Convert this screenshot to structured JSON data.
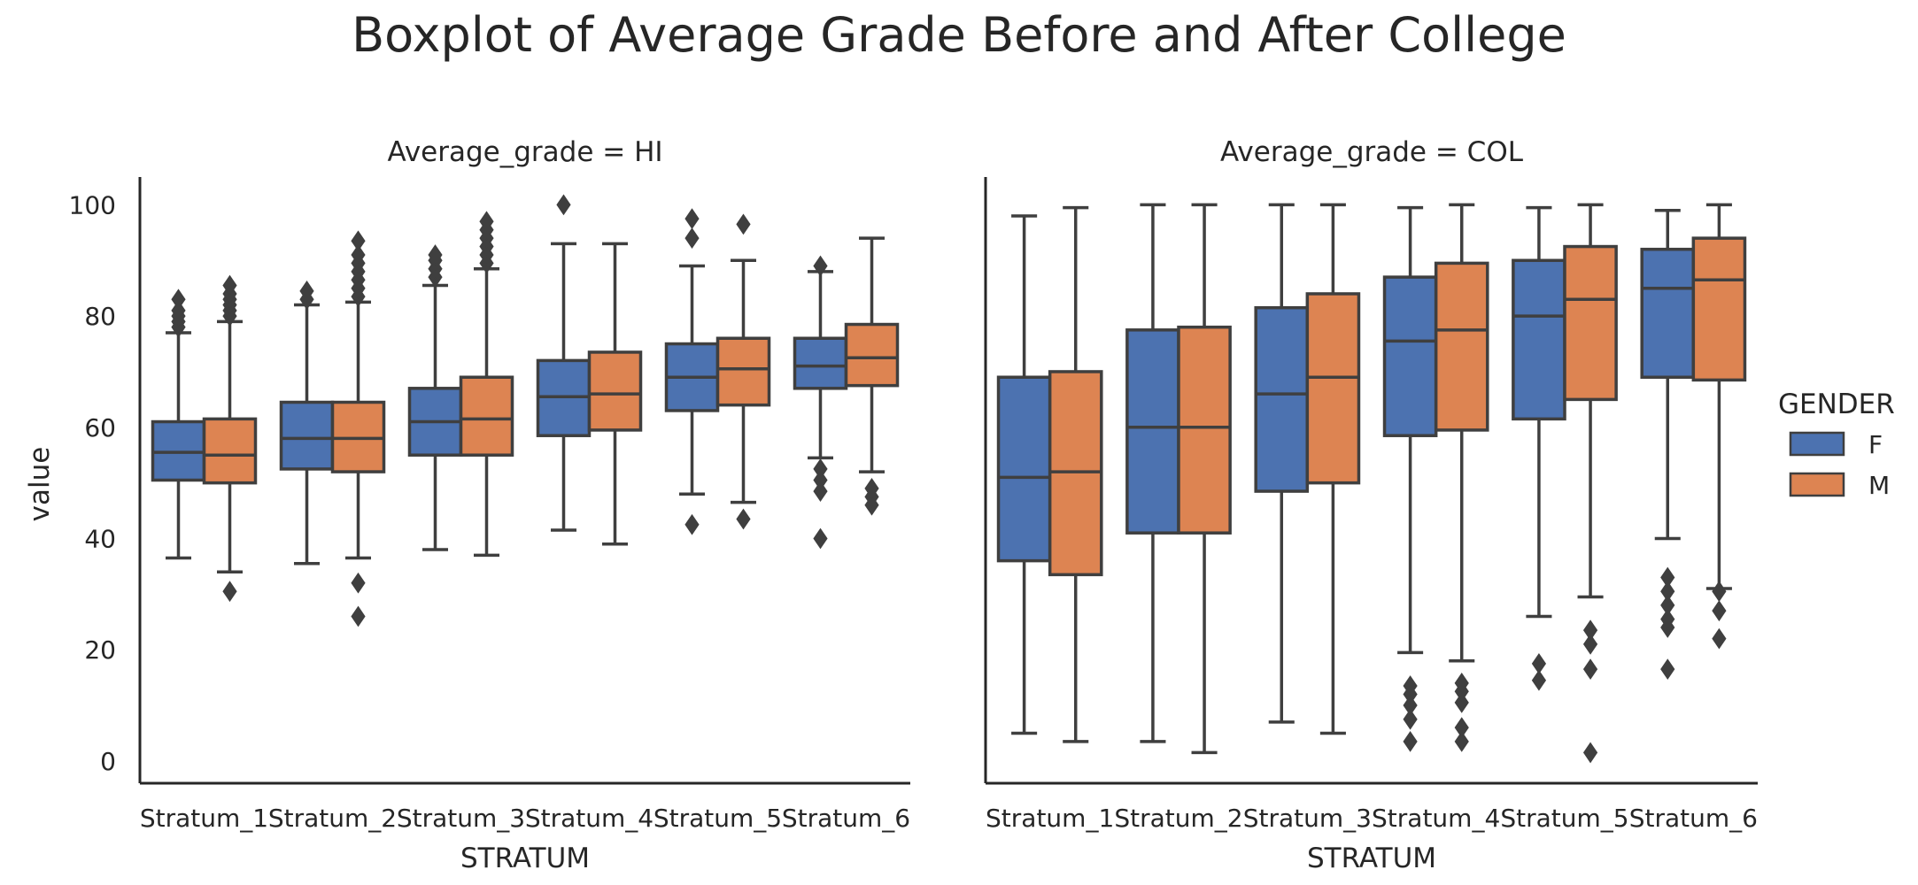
{
  "chart_data": {
    "type": "boxplot",
    "title": "Boxplot of Average Grade Before and After College",
    "xlabel": "STRATUM",
    "ylabel": "value",
    "ylim": [
      -4,
      105
    ],
    "yticks": [
      0,
      20,
      40,
      60,
      80,
      100
    ],
    "categories": [
      "Stratum_1",
      "Stratum_2",
      "Stratum_3",
      "Stratum_4",
      "Stratum_5",
      "Stratum_6"
    ],
    "legend": {
      "title": "GENDER",
      "placement": "right",
      "entries": [
        {
          "label": "F",
          "color": "#4c72b0"
        },
        {
          "label": "M",
          "color": "#dd8452"
        }
      ]
    },
    "colors": {
      "F": "#4c72b0",
      "M": "#dd8452",
      "lines": "#3f3f3f",
      "axis": "#262626"
    },
    "facets": [
      {
        "title": "Average_grade = HI",
        "series": [
          {
            "name": "F",
            "boxes": [
              {
                "q1": 50.5,
                "median": 55.5,
                "q3": 61.0,
                "whislo": 36.5,
                "whishi": 77.0,
                "fliers": [
                  78,
                  79,
                  80,
                  81,
                  83
                ]
              },
              {
                "q1": 52.5,
                "median": 58.0,
                "q3": 64.5,
                "whislo": 35.5,
                "whishi": 82.0,
                "fliers": [
                  83,
                  84.5
                ]
              },
              {
                "q1": 55.0,
                "median": 61.0,
                "q3": 67.0,
                "whislo": 38.0,
                "whishi": 85.5,
                "fliers": [
                  87,
                  88.5,
                  90,
                  91
                ]
              },
              {
                "q1": 58.5,
                "median": 65.5,
                "q3": 72.0,
                "whislo": 41.5,
                "whishi": 93.0,
                "fliers": [
                  100
                ]
              },
              {
                "q1": 63.0,
                "median": 69.0,
                "q3": 75.0,
                "whislo": 48.0,
                "whishi": 89.0,
                "fliers": [
                  42.5,
                  94,
                  97.5
                ]
              },
              {
                "q1": 67.0,
                "median": 71.0,
                "q3": 76.0,
                "whislo": 54.5,
                "whishi": 88.0,
                "fliers": [
                  40,
                  48.5,
                  50.5,
                  52.5,
                  89
                ]
              }
            ]
          },
          {
            "name": "M",
            "boxes": [
              {
                "q1": 50.0,
                "median": 55.0,
                "q3": 61.5,
                "whislo": 34.0,
                "whishi": 79.0,
                "fliers": [
                  30.5,
                  80,
                  81,
                  82,
                  83,
                  84,
                  85.5
                ]
              },
              {
                "q1": 52.0,
                "median": 58.0,
                "q3": 64.5,
                "whislo": 36.5,
                "whishi": 82.5,
                "fliers": [
                  26,
                  32,
                  83.5,
                  85,
                  86.5,
                  88,
                  89.5,
                  91,
                  93.5
                ]
              },
              {
                "q1": 55.0,
                "median": 61.5,
                "q3": 69.0,
                "whislo": 37.0,
                "whishi": 88.5,
                "fliers": [
                  89.5,
                  91,
                  92.5,
                  94,
                  95.5,
                  97
                ]
              },
              {
                "q1": 59.5,
                "median": 66.0,
                "q3": 73.5,
                "whislo": 39.0,
                "whishi": 93.0,
                "fliers": []
              },
              {
                "q1": 64.0,
                "median": 70.5,
                "q3": 76.0,
                "whislo": 46.5,
                "whishi": 90.0,
                "fliers": [
                  43.5,
                  96.5
                ]
              },
              {
                "q1": 67.5,
                "median": 72.5,
                "q3": 78.5,
                "whislo": 52.0,
                "whishi": 94.0,
                "fliers": [
                  46,
                  47.5,
                  49
                ]
              }
            ]
          }
        ]
      },
      {
        "title": "Average_grade = COL",
        "series": [
          {
            "name": "F",
            "boxes": [
              {
                "q1": 36.0,
                "median": 51.0,
                "q3": 69.0,
                "whislo": 5.0,
                "whishi": 98.0,
                "fliers": []
              },
              {
                "q1": 41.0,
                "median": 60.0,
                "q3": 77.5,
                "whislo": 3.5,
                "whishi": 100.0,
                "fliers": []
              },
              {
                "q1": 48.5,
                "median": 66.0,
                "q3": 81.5,
                "whislo": 7.0,
                "whishi": 100.0,
                "fliers": []
              },
              {
                "q1": 58.5,
                "median": 75.5,
                "q3": 87.0,
                "whislo": 19.5,
                "whishi": 99.5,
                "fliers": [
                  3.5,
                  7.5,
                  10,
                  12,
                  13.5
                ]
              },
              {
                "q1": 61.5,
                "median": 80.0,
                "q3": 90.0,
                "whislo": 26.0,
                "whishi": 99.5,
                "fliers": [
                  14.5,
                  17.5
                ]
              },
              {
                "q1": 69.0,
                "median": 85.0,
                "q3": 92.0,
                "whislo": 40.0,
                "whishi": 99.0,
                "fliers": [
                  16.5,
                  24,
                  25.5,
                  28,
                  30.5,
                  33
                ]
              }
            ]
          },
          {
            "name": "M",
            "boxes": [
              {
                "q1": 33.5,
                "median": 52.0,
                "q3": 70.0,
                "whislo": 3.5,
                "whishi": 99.5,
                "fliers": []
              },
              {
                "q1": 41.0,
                "median": 60.0,
                "q3": 78.0,
                "whislo": 1.5,
                "whishi": 100.0,
                "fliers": []
              },
              {
                "q1": 50.0,
                "median": 69.0,
                "q3": 84.0,
                "whislo": 5.0,
                "whishi": 100.0,
                "fliers": []
              },
              {
                "q1": 59.5,
                "median": 77.5,
                "q3": 89.5,
                "whislo": 18.0,
                "whishi": 100.0,
                "fliers": [
                  3.5,
                  6,
                  10.5,
                  12.5,
                  14
                ]
              },
              {
                "q1": 65.0,
                "median": 83.0,
                "q3": 92.5,
                "whislo": 29.5,
                "whishi": 100.0,
                "fliers": [
                  1.5,
                  16.5,
                  21,
                  23.5
                ]
              },
              {
                "q1": 68.5,
                "median": 86.5,
                "q3": 94.0,
                "whislo": 31.0,
                "whishi": 100.0,
                "fliers": [
                  22,
                  27,
                  30.5
                ]
              }
            ]
          }
        ]
      }
    ]
  }
}
